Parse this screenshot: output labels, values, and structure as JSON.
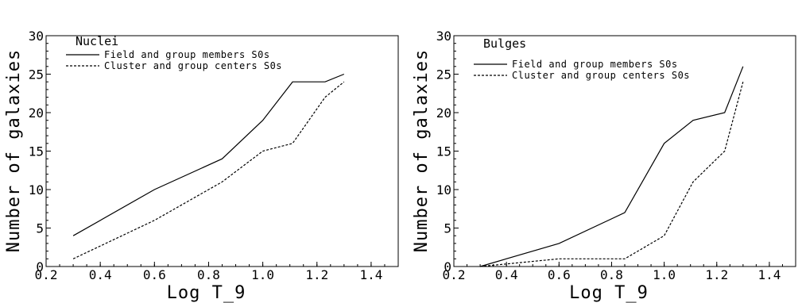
{
  "chart_data": [
    {
      "type": "line",
      "title": "Nuclei",
      "xlabel": "Log T_9",
      "ylabel": "Number of galaxies",
      "xlim": [
        0.2,
        1.5
      ],
      "ylim": [
        0,
        30
      ],
      "xticks": [
        "0.2",
        "0.4",
        "0.6",
        "0.8",
        "1.0",
        "1.2",
        "1.4"
      ],
      "yticks": [
        "0",
        "5",
        "10",
        "15",
        "20",
        "25",
        "30"
      ],
      "legend": "top-left",
      "grid": false,
      "series": [
        {
          "name": "Field and group members S0s",
          "dash": "solid",
          "x": [
            0.3,
            0.6,
            0.85,
            1.0,
            1.11,
            1.23,
            1.3
          ],
          "y": [
            4,
            10,
            14,
            19,
            24,
            24,
            25
          ]
        },
        {
          "name": "Cluster and group centers S0s",
          "dash": "dashed",
          "x": [
            0.3,
            0.6,
            0.85,
            1.0,
            1.11,
            1.23,
            1.3
          ],
          "y": [
            1,
            6,
            11,
            15,
            16,
            22,
            24
          ]
        }
      ]
    },
    {
      "type": "line",
      "title": "Bulges",
      "xlabel": "Log T_9",
      "ylabel": "Number of galaxies",
      "xlim": [
        0.2,
        1.5
      ],
      "ylim": [
        0,
        30
      ],
      "xticks": [
        "0.2",
        "0.4",
        "0.6",
        "0.8",
        "1.0",
        "1.2",
        "1.4"
      ],
      "yticks": [
        "0",
        "5",
        "10",
        "15",
        "20",
        "25",
        "30"
      ],
      "legend": "top-left",
      "grid": false,
      "series": [
        {
          "name": "Field and group members S0s",
          "dash": "solid",
          "x": [
            0.3,
            0.6,
            0.85,
            1.0,
            1.11,
            1.23,
            1.3
          ],
          "y": [
            0,
            3,
            7,
            16,
            19,
            20,
            26
          ]
        },
        {
          "name": "Cluster and group centers S0s",
          "dash": "dashed",
          "x": [
            0.3,
            0.6,
            0.85,
            1.0,
            1.11,
            1.23,
            1.3
          ],
          "y": [
            0,
            1,
            1,
            4,
            11,
            15,
            24
          ]
        }
      ]
    }
  ]
}
